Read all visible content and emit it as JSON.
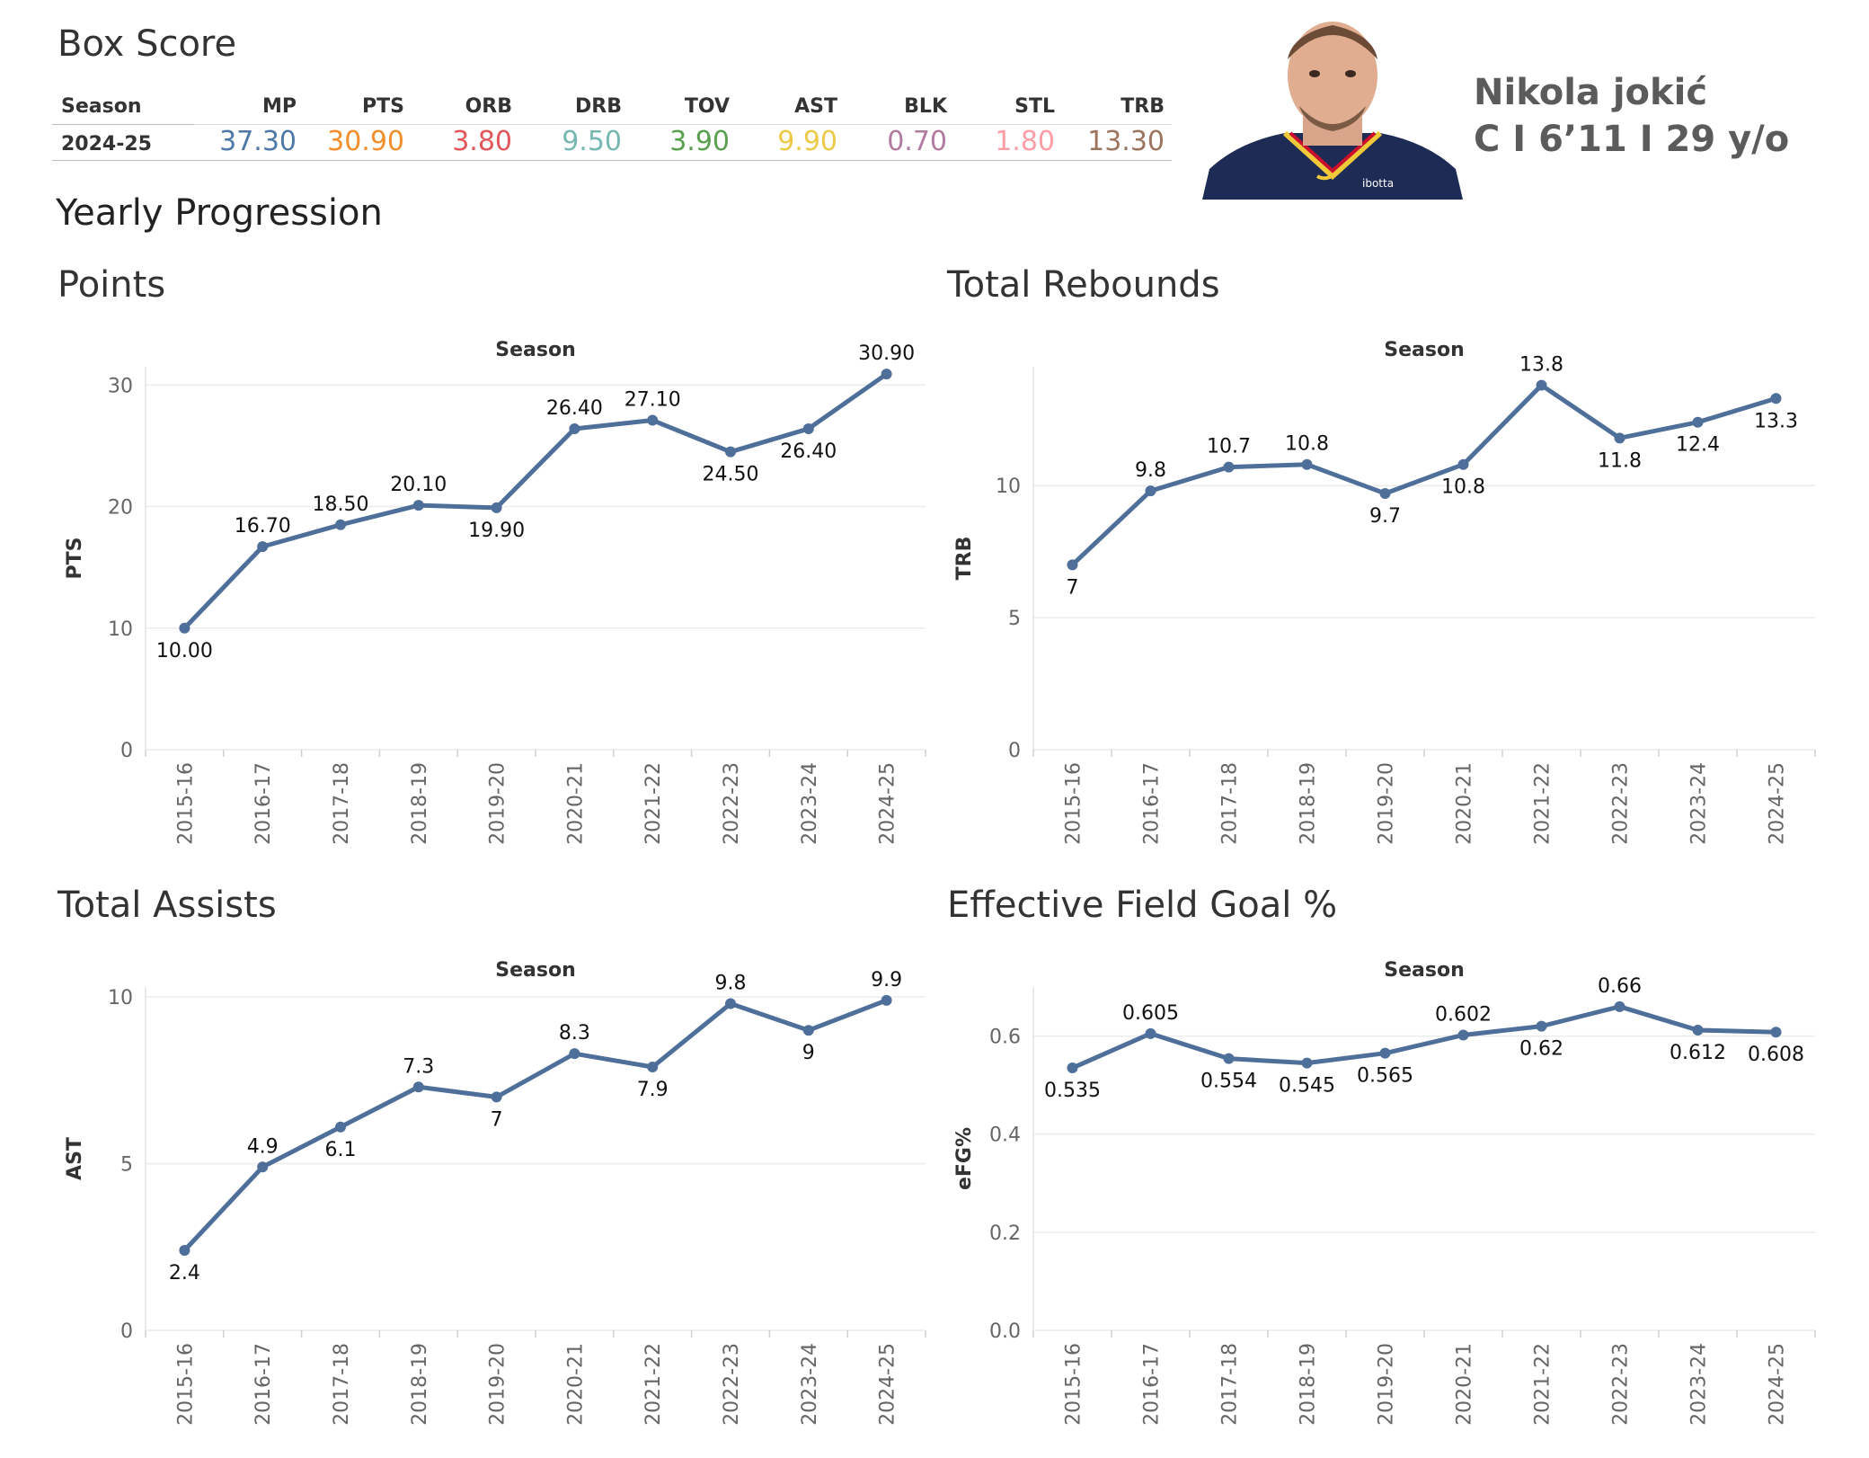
{
  "box_score": {
    "title": "Box Score",
    "headers": [
      "Season",
      "MP",
      "PTS",
      "ORB",
      "DRB",
      "TOV",
      "AST",
      "BLK",
      "STL",
      "TRB"
    ],
    "row": [
      "2024-25",
      "37.30",
      "30.90",
      "3.80",
      "9.50",
      "3.90",
      "9.90",
      "0.70",
      "1.80",
      "13.30"
    ],
    "value_colors": [
      "#333333",
      "#4e79a7",
      "#f28e2b",
      "#e15759",
      "#76b7b2",
      "#59a14f",
      "#edc948",
      "#b07aa1",
      "#ff9da7",
      "#9c755f"
    ]
  },
  "player": {
    "name": "Nikola jokić",
    "meta": "C I 6’11 I 29 y/o",
    "jersey_text": "ibotta"
  },
  "section_title": "Yearly Progression",
  "line_color": "#4e6f99",
  "chart_data": [
    {
      "type": "line",
      "title": "Points",
      "x_title": "Season",
      "ylabel": "PTS",
      "categories": [
        "2015-16",
        "2016-17",
        "2017-18",
        "2018-19",
        "2019-20",
        "2020-21",
        "2021-22",
        "2022-23",
        "2023-24",
        "2024-25"
      ],
      "values": [
        10.0,
        16.7,
        18.5,
        20.1,
        19.9,
        26.4,
        27.1,
        24.5,
        26.4,
        30.9
      ],
      "labels": [
        "10.00",
        "16.70",
        "18.50",
        "20.10",
        "19.90",
        "26.40",
        "27.10",
        "24.50",
        "26.40",
        "30.90"
      ],
      "ylim": [
        0,
        31.5
      ],
      "yticks": [
        0,
        10,
        20,
        30
      ],
      "ytick_labels": [
        "0",
        "10",
        "20",
        "30"
      ]
    },
    {
      "type": "line",
      "title": "Total Rebounds",
      "x_title": "Season",
      "ylabel": "TRB",
      "categories": [
        "2015-16",
        "2016-17",
        "2017-18",
        "2018-19",
        "2019-20",
        "2020-21",
        "2021-22",
        "2022-23",
        "2023-24",
        "2024-25"
      ],
      "values": [
        7,
        9.8,
        10.7,
        10.8,
        9.7,
        10.8,
        13.8,
        11.8,
        12.4,
        13.3
      ],
      "labels": [
        "7",
        "9.8",
        "10.7",
        "10.8",
        "9.7",
        "10.8",
        "13.8",
        "11.8",
        "12.4",
        "13.3"
      ],
      "ylim": [
        0,
        14.5
      ],
      "yticks": [
        0,
        5,
        10
      ],
      "ytick_labels": [
        "0",
        "5",
        "10"
      ]
    },
    {
      "type": "line",
      "title": "Total Assists",
      "x_title": "Season",
      "ylabel": "AST",
      "categories": [
        "2015-16",
        "2016-17",
        "2017-18",
        "2018-19",
        "2019-20",
        "2020-21",
        "2021-22",
        "2022-23",
        "2023-24",
        "2024-25"
      ],
      "values": [
        2.4,
        4.9,
        6.1,
        7.3,
        7.0,
        8.3,
        7.9,
        9.8,
        9.0,
        9.9
      ],
      "labels": [
        "2.4",
        "4.9",
        "6.1",
        "7.3",
        "7",
        "8.3",
        "7.9",
        "9.8",
        "9",
        "9.9"
      ],
      "ylim": [
        0,
        10.3
      ],
      "yticks": [
        0,
        5,
        10
      ],
      "ytick_labels": [
        "0",
        "5",
        "10"
      ]
    },
    {
      "type": "line",
      "title": "Effective Field Goal %",
      "x_title": "Season",
      "ylabel": "eFG%",
      "categories": [
        "2015-16",
        "2016-17",
        "2017-18",
        "2018-19",
        "2019-20",
        "2020-21",
        "2021-22",
        "2022-23",
        "2023-24",
        "2024-25"
      ],
      "values": [
        0.535,
        0.605,
        0.554,
        0.545,
        0.565,
        0.602,
        0.62,
        0.66,
        0.612,
        0.608
      ],
      "labels": [
        "0.535",
        "0.605",
        "0.554",
        "0.545",
        "0.565",
        "0.602",
        "0.62",
        "0.66",
        "0.612",
        "0.608"
      ],
      "ylim": [
        0,
        0.7
      ],
      "yticks": [
        0,
        0.2,
        0.4,
        0.6
      ],
      "ytick_labels": [
        "0.0",
        "0.2",
        "0.4",
        "0.6"
      ]
    }
  ]
}
